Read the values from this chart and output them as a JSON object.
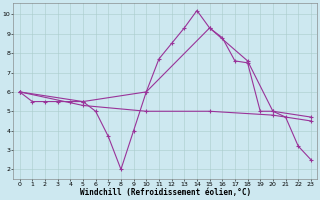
{
  "title": "",
  "xlabel": "Windchill (Refroidissement éolien,°C)",
  "ylabel": "",
  "bg_color": "#cde8f0",
  "grid_color": "#aacccc",
  "line_color": "#993399",
  "x_ticks": [
    0,
    1,
    2,
    3,
    4,
    5,
    6,
    7,
    8,
    9,
    10,
    11,
    12,
    13,
    14,
    15,
    16,
    17,
    18,
    19,
    20,
    21,
    22,
    23
  ],
  "y_ticks": [
    2,
    3,
    4,
    5,
    6,
    7,
    8,
    9,
    10
  ],
  "ylim": [
    1.5,
    10.6
  ],
  "xlim": [
    -0.5,
    23.5
  ],
  "series1": {
    "x": [
      0,
      1,
      2,
      3,
      4,
      5,
      6,
      7,
      8,
      9,
      10,
      11,
      12,
      13,
      14,
      15,
      16,
      17,
      18,
      19,
      20,
      21,
      22,
      23
    ],
    "y": [
      6.0,
      5.5,
      5.5,
      5.5,
      5.5,
      5.5,
      5.0,
      3.7,
      2.0,
      4.0,
      6.0,
      7.7,
      8.5,
      9.3,
      10.2,
      9.3,
      8.8,
      7.6,
      7.5,
      5.0,
      5.0,
      4.7,
      3.2,
      2.5
    ]
  },
  "series2": {
    "x": [
      0,
      5,
      10,
      15,
      18,
      20,
      23
    ],
    "y": [
      6.0,
      5.5,
      6.0,
      9.3,
      7.6,
      5.0,
      4.7
    ]
  },
  "series3": {
    "x": [
      0,
      5,
      10,
      15,
      20,
      23
    ],
    "y": [
      6.0,
      5.3,
      5.0,
      5.0,
      4.8,
      4.5
    ]
  },
  "marker": "+",
  "markersize": 3,
  "linewidth": 0.8,
  "tick_fontsize": 4.5,
  "label_fontsize": 5.5,
  "label_family": "monospace"
}
